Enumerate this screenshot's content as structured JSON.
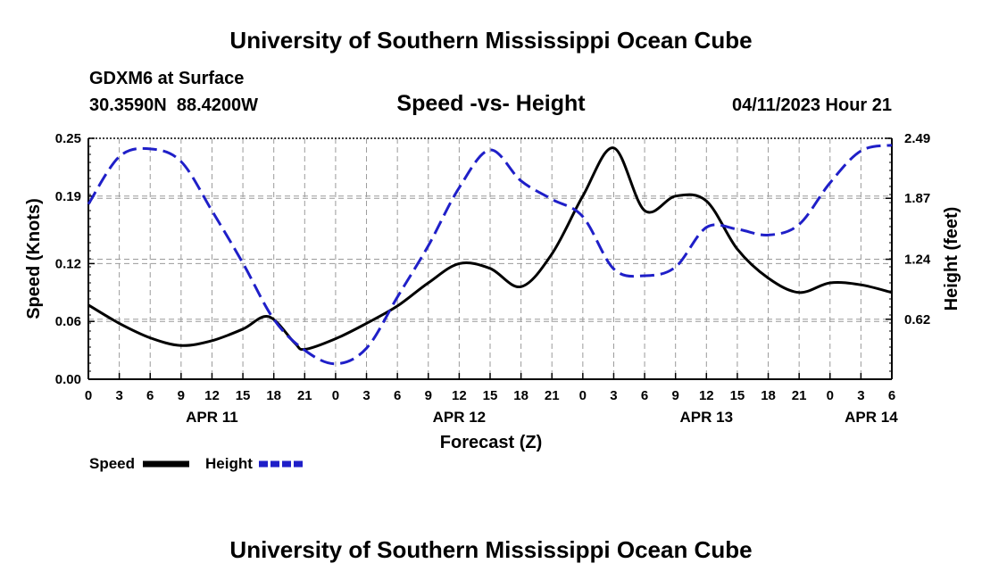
{
  "header": {
    "title": "University of Southern Mississippi Ocean Cube",
    "station": "GDXM6 at Surface",
    "coordinates": "30.3590N  88.4200W",
    "datetime": "04/11/2023 Hour 21"
  },
  "footer": {
    "title": "University of Southern Mississippi Ocean Cube"
  },
  "chart_data": {
    "type": "line",
    "title": "Speed -vs- Height",
    "xlabel": "Forecast (Z)",
    "ylabel_left": "Speed (Knots)",
    "ylabel_right": "Height (feet)",
    "x_unit": "hours since APR 11 00Z",
    "xlim": [
      0,
      78
    ],
    "ylim_left": [
      0,
      0.25
    ],
    "ylim_right": [
      0,
      2.49
    ],
    "grid": true,
    "x_ticks": [
      0,
      3,
      6,
      9,
      12,
      15,
      18,
      21,
      24,
      27,
      30,
      33,
      36,
      39,
      42,
      45,
      48,
      51,
      54,
      57,
      60,
      63,
      66,
      69,
      72,
      75,
      78
    ],
    "x_tick_labels": [
      "0",
      "3",
      "6",
      "9",
      "12",
      "15",
      "18",
      "21",
      "0",
      "3",
      "6",
      "9",
      "12",
      "15",
      "18",
      "21",
      "0",
      "3",
      "6",
      "9",
      "12",
      "15",
      "18",
      "21",
      "0",
      "3",
      "6"
    ],
    "date_labels": [
      {
        "x": 12,
        "label": "APR 11"
      },
      {
        "x": 36,
        "label": "APR 12"
      },
      {
        "x": 60,
        "label": "APR 13"
      },
      {
        "x": 76,
        "label": "APR 14"
      }
    ],
    "y_left_ticks": [
      0.0,
      0.06,
      0.12,
      0.19,
      0.25
    ],
    "y_left_tick_labels": [
      "0.00",
      "0.06",
      "0.12",
      "0.19",
      "0.25"
    ],
    "y_right_ticks": [
      0.62,
      1.24,
      1.87,
      2.49
    ],
    "y_right_tick_labels": [
      "0.62",
      "1.24",
      "1.87",
      "2.49"
    ],
    "series": [
      {
        "name": "Speed",
        "axis": "left",
        "color": "#000000",
        "dashed": false,
        "x": [
          0,
          3,
          6,
          9,
          12,
          15,
          17.5,
          20,
          21,
          24,
          27,
          30,
          33,
          36,
          39,
          42,
          45,
          48,
          51,
          54,
          57,
          60,
          63,
          66,
          69,
          72,
          75,
          78
        ],
        "values": [
          0.077,
          0.058,
          0.043,
          0.035,
          0.04,
          0.052,
          0.065,
          0.038,
          0.031,
          0.042,
          0.058,
          0.076,
          0.1,
          0.12,
          0.115,
          0.096,
          0.13,
          0.19,
          0.24,
          0.175,
          0.19,
          0.185,
          0.135,
          0.105,
          0.09,
          0.1,
          0.098,
          0.09
        ]
      },
      {
        "name": "Height",
        "axis": "right",
        "color": "#1f1fc8",
        "dashed": true,
        "x": [
          0,
          3,
          6,
          9,
          12,
          15,
          18,
          21,
          24,
          27,
          30,
          33,
          36,
          39,
          42,
          45,
          48,
          51,
          54,
          57,
          60,
          63,
          66,
          69,
          72,
          75,
          78
        ],
        "values": [
          1.81,
          2.3,
          2.38,
          2.25,
          1.74,
          1.2,
          0.62,
          0.3,
          0.16,
          0.32,
          0.85,
          1.38,
          1.98,
          2.37,
          2.05,
          1.86,
          1.68,
          1.14,
          1.07,
          1.16,
          1.57,
          1.55,
          1.49,
          1.6,
          2.03,
          2.36,
          2.42
        ]
      }
    ],
    "legend_position": "bottom-left"
  }
}
